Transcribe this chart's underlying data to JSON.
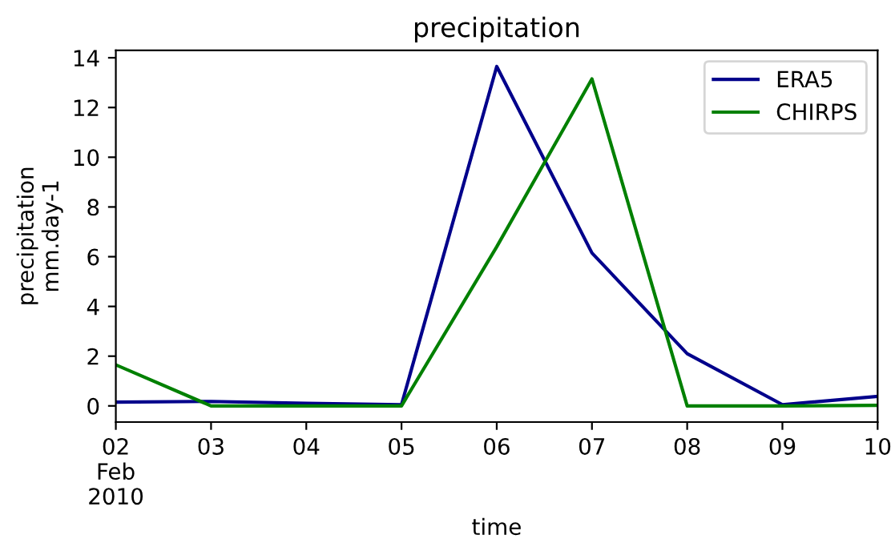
{
  "chart_data": {
    "type": "line",
    "title": "precipitation",
    "xlabel": "time",
    "ylabel": "precipitation\nmm.day-1",
    "x": [
      "2010-02-02",
      "2010-02-03",
      "2010-02-04",
      "2010-02-05",
      "2010-02-06",
      "2010-02-07",
      "2010-02-08",
      "2010-02-09",
      "2010-02-10"
    ],
    "series": [
      {
        "name": "ERA5",
        "color": "#00008b",
        "values": [
          0.15,
          0.18,
          0.1,
          0.05,
          13.65,
          6.15,
          2.1,
          0.05,
          0.38
        ]
      },
      {
        "name": "CHIRPS",
        "color": "#008000",
        "values": [
          1.65,
          0.0,
          0.0,
          0.0,
          6.4,
          13.15,
          0.0,
          0.0,
          0.02
        ]
      }
    ],
    "xlim": [
      "2010-02-02",
      "2010-02-10"
    ],
    "xticks": [
      {
        "value": "2010-02-02",
        "label": "02\nFeb\n2010"
      },
      {
        "value": "2010-02-03",
        "label": "03"
      },
      {
        "value": "2010-02-04",
        "label": "04"
      },
      {
        "value": "2010-02-05",
        "label": "05"
      },
      {
        "value": "2010-02-06",
        "label": "06"
      },
      {
        "value": "2010-02-07",
        "label": "07"
      },
      {
        "value": "2010-02-08",
        "label": "08"
      },
      {
        "value": "2010-02-09",
        "label": "09"
      },
      {
        "value": "2010-02-10",
        "label": "10"
      }
    ],
    "ylim": [
      -0.65,
      14.3
    ],
    "yticks": [
      0,
      2,
      4,
      6,
      8,
      10,
      12,
      14
    ],
    "grid": false,
    "legend": "top right",
    "line_style": "solid",
    "marker": "none"
  }
}
